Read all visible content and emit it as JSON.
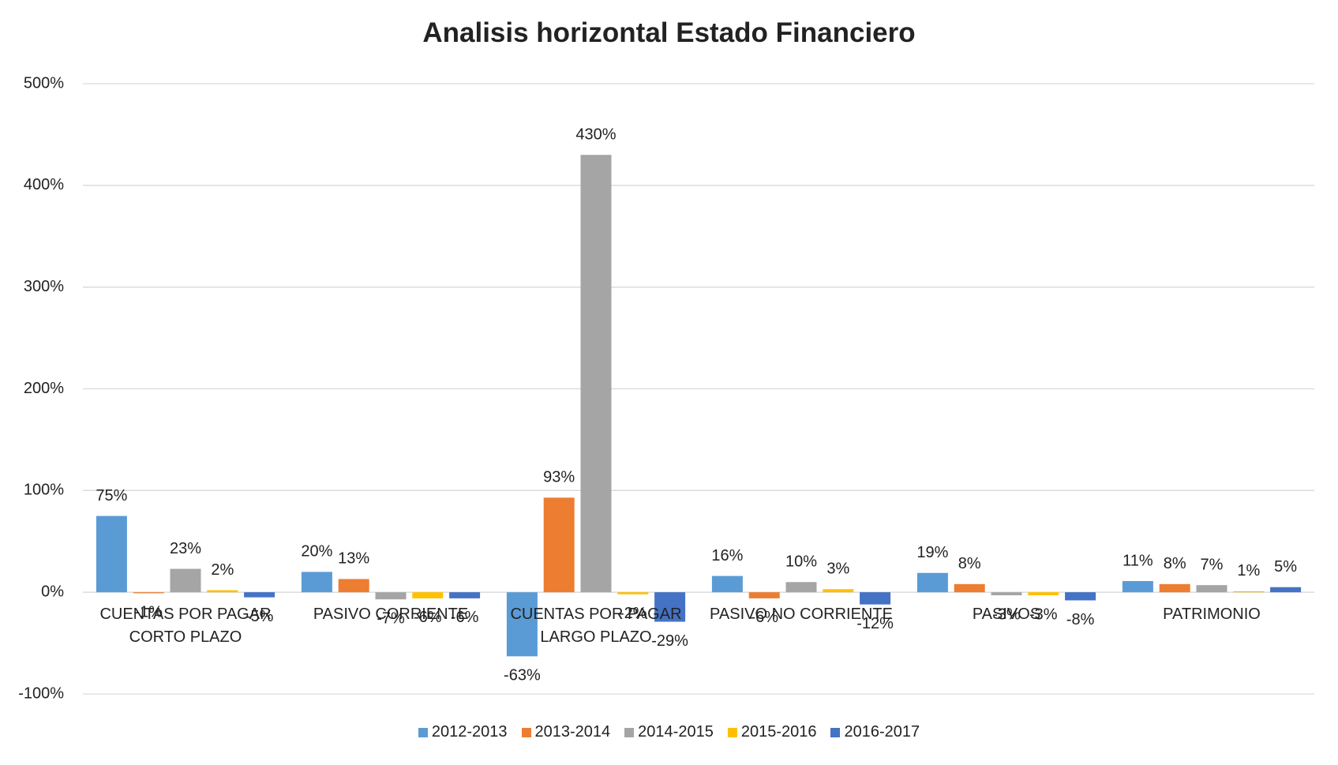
{
  "chart_data": {
    "type": "bar",
    "title": "Analisis horizontal Estado Financiero",
    "categories": [
      "CUENTAS POR PAGAR CORTO PLAZO",
      "PASIVO CORRIENTE",
      "CUENTAS POR PAGAR LARGO PLAZO",
      "PASIVO NO CORRIENTE",
      "PASIVOS",
      "PATRIMONIO"
    ],
    "series": [
      {
        "name": "2012-2013",
        "color": "#5b9bd5",
        "values": [
          75,
          20,
          -63,
          16,
          19,
          11
        ],
        "value_labels": [
          "75%",
          "20%",
          "-63%",
          "16%",
          "19%",
          "11%"
        ]
      },
      {
        "name": "2013-2014",
        "color": "#ed7d31",
        "values": [
          -1,
          13,
          93,
          -6,
          8,
          8
        ],
        "value_labels": [
          "-1%",
          "13%",
          "93%",
          "-6%",
          "8%",
          "8%"
        ]
      },
      {
        "name": "2014-2015",
        "color": "#a5a5a5",
        "values": [
          23,
          -7,
          430,
          10,
          -3,
          7
        ],
        "value_labels": [
          "23%",
          "-7%",
          "430%",
          "10%",
          "-3%",
          "7%"
        ]
      },
      {
        "name": "2015-2016",
        "color": "#ffc000",
        "values": [
          2,
          -6,
          -2,
          3,
          -3,
          1
        ],
        "value_labels": [
          "2%",
          "-6%",
          "-2%",
          "3%",
          "-3%",
          "1%"
        ]
      },
      {
        "name": "2016-2017",
        "color": "#4472c4",
        "values": [
          -5,
          -6,
          -29,
          -12,
          -8,
          5
        ],
        "value_labels": [
          "-5%",
          "-6%",
          "-29%",
          "-12%",
          "-8%",
          "5%"
        ]
      }
    ],
    "ylim": [
      -100,
      500
    ],
    "yticks": [
      {
        "value": -100,
        "label": "-100%"
      },
      {
        "value": 0,
        "label": "0%"
      },
      {
        "value": 100,
        "label": "100%"
      },
      {
        "value": 200,
        "label": "200%"
      },
      {
        "value": 300,
        "label": "300%"
      },
      {
        "value": 400,
        "label": "400%"
      },
      {
        "value": 500,
        "label": "500%"
      }
    ],
    "grid": true,
    "legend": "bottom"
  }
}
